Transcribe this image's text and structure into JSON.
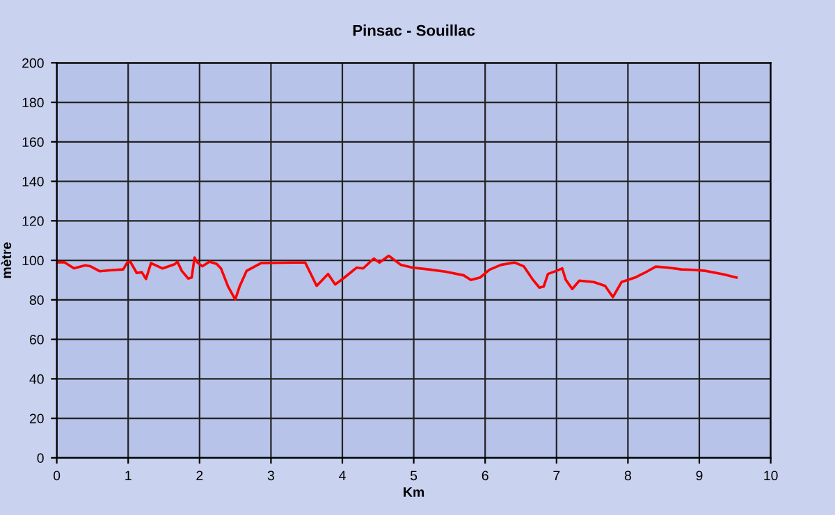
{
  "chart_data": {
    "type": "line",
    "title": "Pinsac - Souillac",
    "xlabel": "Km",
    "ylabel": "mètre",
    "xlim": [
      0,
      10
    ],
    "xticks": [
      0,
      1,
      2,
      3,
      4,
      5,
      6,
      7,
      8,
      9,
      10
    ],
    "ylim": [
      0,
      200
    ],
    "yticks": [
      0,
      20,
      40,
      60,
      80,
      100,
      120,
      140,
      160,
      180,
      200
    ],
    "grid": true,
    "series": [
      {
        "color": "#ff0000",
        "x": [
          0,
          0.11,
          0.24,
          0.4,
          0.47,
          0.6,
          0.76,
          0.93,
          0.99,
          1.03,
          1.12,
          1.19,
          1.25,
          1.32,
          1.48,
          1.65,
          1.69,
          1.75,
          1.84,
          1.89,
          1.93,
          1.97,
          2.04,
          2.14,
          2.24,
          2.3,
          2.4,
          2.5,
          2.56,
          2.66,
          2.86,
          3.31,
          3.48,
          3.64,
          3.8,
          3.9,
          4.03,
          4.2,
          4.29,
          4.44,
          4.52,
          4.65,
          4.82,
          4.98,
          5.21,
          5.44,
          5.7,
          5.8,
          5.93,
          6.06,
          6.22,
          6.41,
          6.54,
          6.67,
          6.76,
          6.82,
          6.88,
          7.0,
          7.08,
          7.13,
          7.22,
          7.32,
          7.52,
          7.68,
          7.79,
          7.91,
          8.1,
          8.23,
          8.39,
          8.56,
          8.75,
          8.92,
          9.08,
          9.34,
          9.52
        ],
        "values": [
          99,
          99,
          96,
          97.5,
          97,
          94.5,
          95,
          95.4,
          99,
          99.3,
          93.6,
          94,
          90.6,
          98.6,
          95.9,
          98,
          99.3,
          94.7,
          90.8,
          91.3,
          101.4,
          98.9,
          97,
          99.3,
          98.2,
          95.9,
          86.7,
          80.2,
          86.7,
          94.7,
          98.6,
          98.9,
          98.9,
          87.1,
          93.1,
          87.8,
          91.3,
          96.3,
          95.9,
          100.9,
          98.9,
          102.3,
          97.7,
          96.3,
          95.4,
          94.3,
          92.4,
          90.1,
          91.3,
          95.2,
          97.7,
          98.9,
          97,
          90.1,
          86.2,
          86.7,
          93.1,
          94.7,
          95.9,
          90.1,
          85.5,
          89.7,
          89,
          87.1,
          81.4,
          89,
          91.3,
          93.6,
          96.8,
          96.3,
          95.4,
          95.2,
          94.7,
          92.9,
          91.3
        ]
      }
    ]
  }
}
